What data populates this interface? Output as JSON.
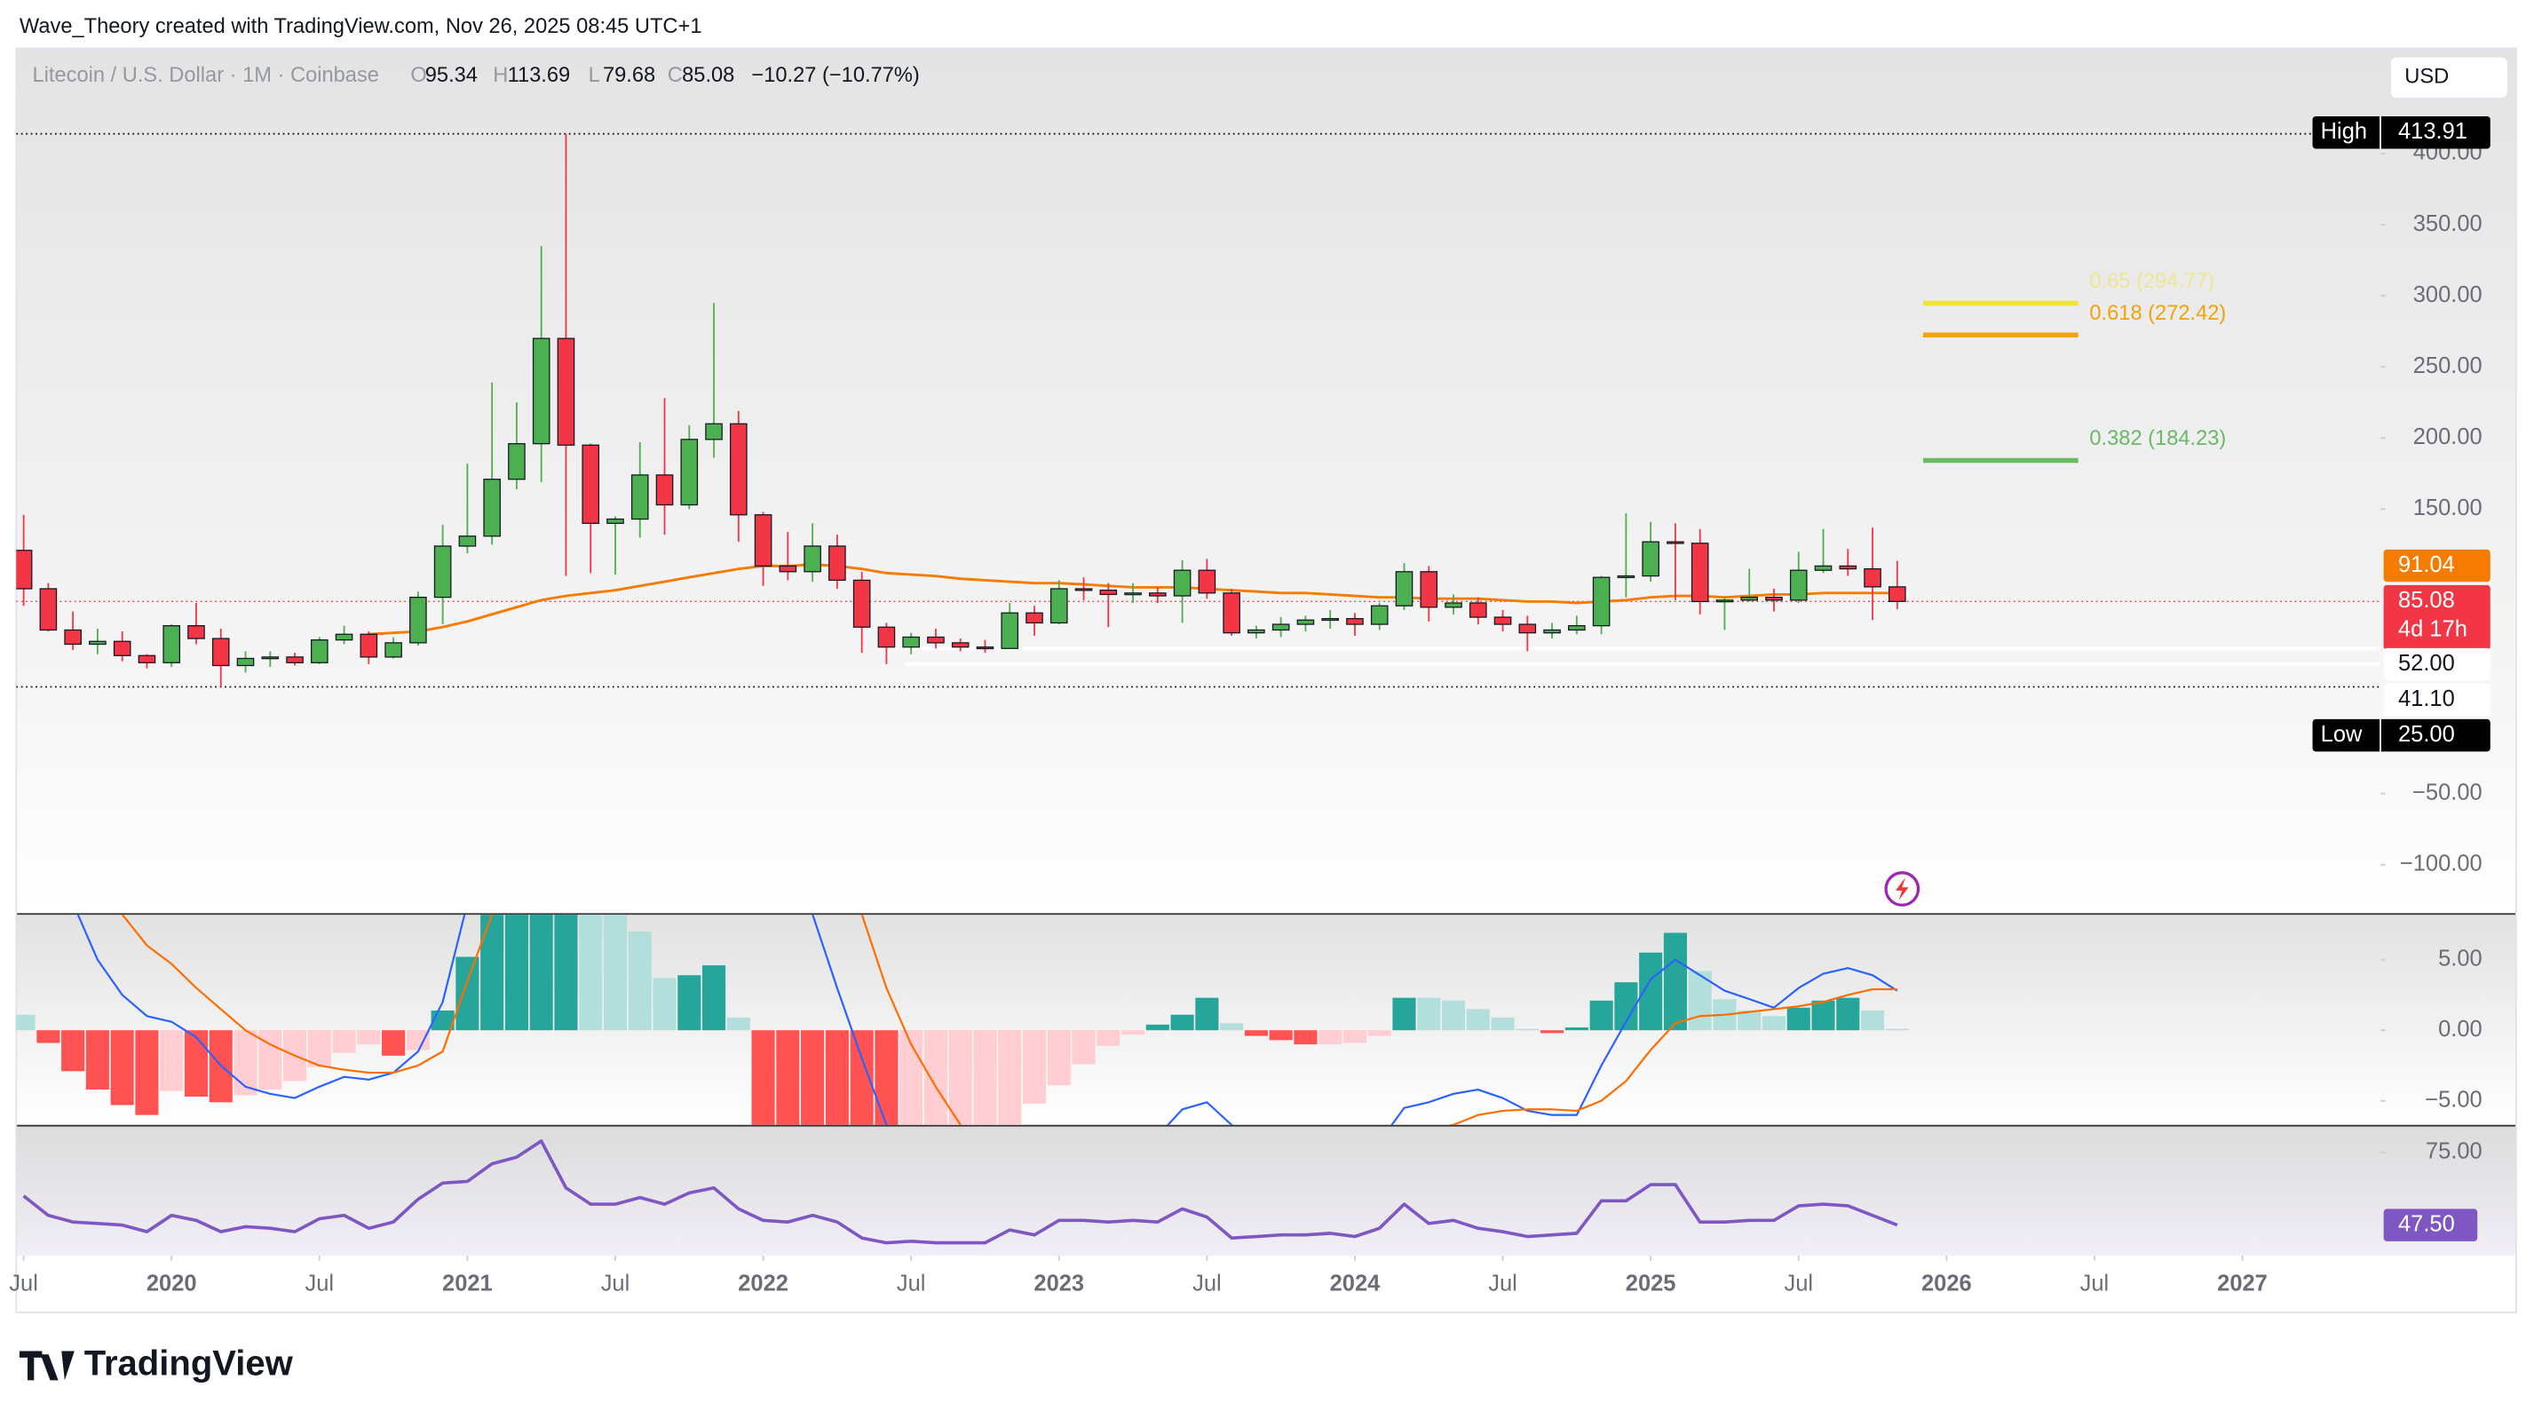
{
  "chart_data": {
    "type": "candlestick",
    "caption": "Wave_Theory created with TradingView.com, Nov 26, 2025 08:45 UTC+1",
    "title": "Litecoin / U.S. Dollar · 1M · Coinbase",
    "ohlc_legend": [
      {
        "key": "O",
        "text": "95.34"
      },
      {
        "key": "H",
        "text": "113.69"
      },
      {
        "key": "L",
        "text": "79.68"
      },
      {
        "key": "C",
        "text": "85.08"
      }
    ],
    "change": "−10.27 (−10.77%)",
    "currency": "USD",
    "branding": "TradingView",
    "up_color": "#4caf50",
    "down_color": "#f23645",
    "xlim": [
      -0.3,
      95.6
    ],
    "xticks": [
      {
        "value": 0,
        "label": "Jul"
      },
      {
        "value": 6,
        "label": "2020"
      },
      {
        "value": 12,
        "label": "Jul"
      },
      {
        "value": 18,
        "label": "2021"
      },
      {
        "value": 24,
        "label": "Jul"
      },
      {
        "value": 30,
        "label": "2022"
      },
      {
        "value": 36,
        "label": "Jul"
      },
      {
        "value": 42,
        "label": "2023"
      },
      {
        "value": 48,
        "label": "Jul"
      },
      {
        "value": 54,
        "label": "2024"
      },
      {
        "value": 60,
        "label": "Jul"
      },
      {
        "value": 66,
        "label": "2025"
      },
      {
        "value": 72,
        "label": "Jul"
      },
      {
        "value": 78,
        "label": "2026"
      },
      {
        "value": 84,
        "label": "Jul"
      },
      {
        "value": 90,
        "label": "2027"
      }
    ],
    "ylim": [
      -134.1,
      473.9
    ],
    "yticks": [
      {
        "value": 400,
        "label": "400.00"
      },
      {
        "value": 350,
        "label": "350.00"
      },
      {
        "value": 300,
        "label": "300.00"
      },
      {
        "value": 250,
        "label": "250.00"
      },
      {
        "value": 200,
        "label": "200.00"
      },
      {
        "value": 150,
        "label": "150.00"
      },
      {
        "value": -50,
        "label": "−50.00"
      },
      {
        "value": -100,
        "label": "−100.00"
      }
    ],
    "open": [
      121,
      94,
      65,
      55,
      57,
      47,
      42,
      68,
      59,
      40,
      45,
      46,
      42,
      58,
      62,
      46,
      56,
      88,
      124,
      131,
      171,
      196,
      270,
      195,
      140,
      143,
      174,
      153,
      199,
      210,
      146,
      110,
      106,
      124,
      100,
      67,
      53,
      60,
      56,
      53,
      52,
      77,
      70,
      94,
      93,
      90,
      91,
      89,
      107,
      91,
      63,
      65,
      69,
      72,
      73,
      69,
      82,
      106,
      81,
      84,
      74,
      69,
      63,
      65,
      68,
      102,
      103,
      127,
      126,
      85,
      86,
      88,
      86,
      107,
      110,
      108,
      95.34
    ],
    "high": [
      146,
      98,
      78,
      66,
      64,
      48,
      69,
      84,
      66,
      50,
      50,
      49,
      60,
      68,
      64,
      60,
      92,
      139,
      182,
      239,
      225,
      335,
      413.91,
      196,
      145,
      197,
      228,
      209,
      295,
      219,
      148,
      134,
      140,
      132,
      106,
      70,
      63,
      66,
      59,
      58,
      84,
      82,
      100,
      102,
      98,
      98,
      95,
      114,
      115,
      94,
      68,
      74,
      75,
      79,
      77,
      84,
      112,
      110,
      90,
      88,
      79,
      75,
      70,
      75,
      103,
      147,
      141,
      140,
      136,
      88,
      108,
      94,
      120,
      136,
      122,
      137,
      113.69
    ],
    "low": [
      82,
      64,
      51,
      48,
      43,
      38,
      39,
      55,
      25,
      35,
      39,
      40,
      41,
      55,
      41,
      45,
      54,
      69,
      119,
      125,
      164,
      169,
      103,
      105,
      104,
      130,
      132,
      150,
      186,
      127,
      96,
      100,
      99,
      94,
      49,
      41,
      48,
      52,
      50,
      49,
      52,
      61,
      69,
      86,
      67,
      84,
      84,
      70,
      87,
      61,
      59,
      60,
      64,
      66,
      61,
      65,
      79,
      71,
      76,
      69,
      64,
      50,
      59,
      62,
      62,
      88,
      99,
      86,
      76,
      65,
      85,
      78,
      84,
      105,
      103,
      72,
      79.68
    ],
    "close": [
      94,
      65,
      55,
      57,
      47,
      42,
      68,
      59,
      40,
      45,
      46,
      42,
      58,
      62,
      46,
      56,
      88,
      124,
      131,
      171,
      196,
      270,
      195,
      140,
      143,
      174,
      153,
      199,
      210,
      146,
      110,
      106,
      124,
      100,
      67,
      53,
      60,
      56,
      53,
      52,
      77,
      70,
      94,
      93,
      90,
      91,
      89,
      107,
      91,
      63,
      65,
      69,
      72,
      73,
      69,
      82,
      106,
      81,
      84,
      74,
      69,
      63,
      65,
      68,
      102,
      103,
      127,
      126,
      85,
      86,
      88,
      86,
      107,
      110,
      108,
      95.34,
      85.08
    ],
    "ma": {
      "color": "#f57c00",
      "values": [
        null,
        null,
        null,
        null,
        null,
        null,
        null,
        null,
        null,
        null,
        null,
        null,
        null,
        null,
        62,
        63,
        64,
        67,
        71,
        76,
        81,
        86,
        89,
        91,
        93,
        96,
        99,
        102,
        105,
        108,
        110,
        110,
        111,
        110,
        108,
        105,
        104,
        103,
        101,
        100,
        99,
        98,
        98,
        97,
        96,
        95,
        95,
        95,
        94,
        93,
        92,
        91,
        91,
        90,
        89,
        88,
        88,
        87,
        87,
        87,
        86,
        85,
        85,
        84,
        85,
        86,
        88,
        89,
        89,
        88,
        89,
        90,
        90,
        91,
        91,
        91,
        91.04
      ]
    },
    "fib_levels": [
      {
        "label": "0.65 (294.77)",
        "value": 294.77,
        "color": "#f2e33a"
      },
      {
        "label": "0.618 (272.42)",
        "value": 272.42,
        "color": "#f0a30a"
      },
      {
        "label": "0.382 (184.23)",
        "value": 184.23,
        "color": "#6ab964"
      }
    ],
    "price_labels": [
      {
        "name": "High",
        "value": 413.91,
        "label": "413.91",
        "color": "#000000"
      },
      {
        "value": 91.04,
        "label": "91.04",
        "color": "#f57c00"
      },
      {
        "value": 85.08,
        "label": "85.08",
        "countdown": "4d 17h",
        "color": "#f23645"
      },
      {
        "value": 52,
        "label": "52.00"
      },
      {
        "value": 41.1,
        "label": "41.10"
      },
      {
        "name": "Low",
        "value": 25,
        "label": "25.00",
        "color": "#000000"
      }
    ],
    "macd": {
      "ylim": [
        -6.7,
        8.18
      ],
      "yticks": [
        {
          "value": 5,
          "label": "5.00"
        },
        {
          "value": 0,
          "label": "0.00"
        },
        {
          "value": -5,
          "label": "−5.00"
        }
      ],
      "colors": {
        "up_strong": "#26a69a",
        "up_weak": "#b2dfdb",
        "down_strong": "#ff5252",
        "down_weak": "#ffcdd2",
        "macd": "#2962ff",
        "signal": "#ff6d00"
      },
      "histogram": [
        1.1,
        -0.9,
        -2.9,
        -4.2,
        -5.3,
        -6.0,
        -4.3,
        -4.7,
        -5.1,
        -4.6,
        -4.2,
        -3.6,
        -2.6,
        -1.6,
        -1.0,
        -1.8,
        -1.4,
        1.4,
        5.2,
        9,
        11,
        14,
        16,
        12,
        10,
        7,
        3.7,
        3.9,
        4.6,
        0.9,
        -7,
        -9,
        -10,
        -11,
        -12,
        -13,
        -12,
        -11,
        -10,
        -9,
        -7,
        -5.2,
        -3.9,
        -2.4,
        -1.1,
        -0.3,
        0.4,
        1.1,
        2.3,
        0.5,
        -0.4,
        -0.7,
        -1.0,
        -1.0,
        -0.9,
        -0.4,
        2.3,
        2.3,
        2.1,
        1.5,
        0.9,
        0.1,
        -0.2,
        0.2,
        2.1,
        3.4,
        5.5,
        6.9,
        4.2,
        2.2,
        1.4,
        1.0,
        1.6,
        2.1,
        2.3,
        1.4,
        0.1
      ],
      "macd_line": [
        12,
        11,
        9,
        5,
        2.5,
        1,
        0.6,
        -0.5,
        -2.5,
        -4,
        -4.5,
        -4.8,
        -4,
        -3.3,
        -3.5,
        -3,
        -1.5,
        2,
        9,
        18,
        24,
        34,
        40,
        38,
        34,
        32,
        30,
        29,
        30,
        25,
        18,
        13,
        8.2,
        3,
        -2,
        -6.7,
        -9,
        -11,
        -12.5,
        -13.5,
        -13,
        -12.5,
        -11,
        -10,
        -9.5,
        -8.5,
        -7.5,
        -5.6,
        -5.1,
        -6.7,
        -7.5,
        -8,
        -8.2,
        -8.3,
        -8.3,
        -7.9,
        -5.5,
        -5.1,
        -4.5,
        -4.2,
        -4.8,
        -5.7,
        -6.0,
        -6.0,
        -2.5,
        0.6,
        3.6,
        5,
        3.9,
        2.8,
        2.2,
        1.6,
        3,
        4,
        4.4,
        3.9,
        2.8
      ],
      "signal_line": [
        16,
        14,
        12,
        10,
        8.2,
        6,
        4.7,
        3,
        1.5,
        0,
        -1,
        -1.8,
        -2.5,
        -2.8,
        -3,
        -3,
        -2.5,
        -1.5,
        3.5,
        8.2,
        13,
        19,
        24,
        27,
        29,
        30,
        30,
        30,
        30,
        29,
        27,
        24,
        20,
        15,
        8.2,
        3,
        -1,
        -4,
        -6.7,
        -8.5,
        -10,
        -11,
        -11.5,
        -11.5,
        -11,
        -10.5,
        -10,
        -9.5,
        -9,
        -8.7,
        -8.5,
        -8.4,
        -8.3,
        -8.2,
        -8,
        -7.8,
        -7.5,
        -7,
        -6.7,
        -6,
        -5.7,
        -5.6,
        -5.6,
        -5.7,
        -5,
        -3.6,
        -1.4,
        0.5,
        1,
        1.1,
        1.3,
        1.5,
        1.7,
        2.0,
        2.5,
        2.9,
        2.9
      ]
    },
    "rsi": {
      "ylim": [
        35.9,
        84.8
      ],
      "yticks": [
        {
          "value": 75,
          "label": "75.00"
        }
      ],
      "color": "#7e57c2",
      "label": {
        "value": 47.5,
        "label": "47.50"
      },
      "values": [
        58.5,
        51.2,
        48.7,
        48.1,
        47.5,
        45,
        51.2,
        49.3,
        45,
        46.9,
        46.3,
        45,
        49.9,
        51.2,
        46.3,
        48.7,
        57.3,
        63.4,
        64,
        70.7,
        73.2,
        79.3,
        61.6,
        55.4,
        55.4,
        57.9,
        55.4,
        59.7,
        61.6,
        53.6,
        49.3,
        48.7,
        51.2,
        48.7,
        42.6,
        40.8,
        41.4,
        40.8,
        40.8,
        40.8,
        45.7,
        43.8,
        49.3,
        49.3,
        48.7,
        49.3,
        48.7,
        53.6,
        50.6,
        42.6,
        43.2,
        43.8,
        43.8,
        44.4,
        43.2,
        46.3,
        55.4,
        48.1,
        49.3,
        46.3,
        45,
        43.2,
        43.8,
        44.4,
        56.7,
        56.7,
        62.8,
        62.8,
        48.7,
        48.7,
        49.3,
        49.3,
        54.8,
        55.4,
        54.8,
        51.2,
        47.5
      ]
    }
  }
}
